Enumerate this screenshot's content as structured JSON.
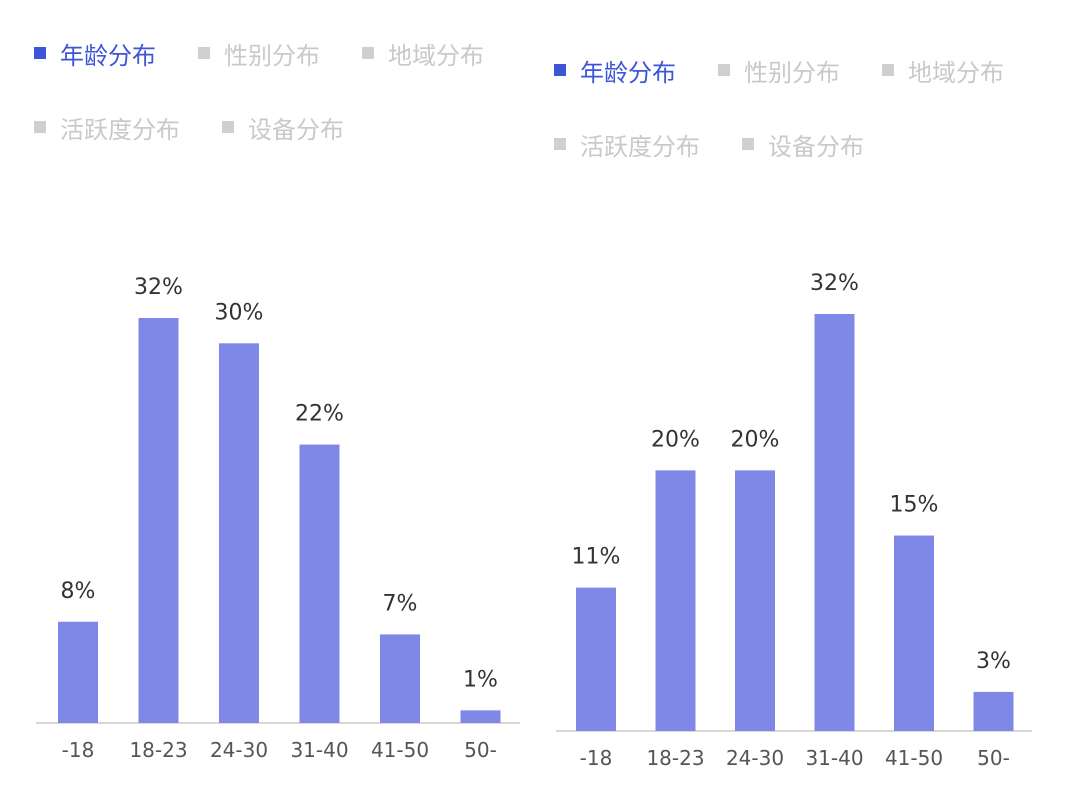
{
  "colors": {
    "bar": "#7f88e6",
    "active_legend": "#3d55d8",
    "inactive_legend": "#c9c9c9"
  },
  "panels": [
    {
      "legend": [
        {
          "label": "年龄分布",
          "active": true
        },
        {
          "label": "性别分布",
          "active": false
        },
        {
          "label": "地域分布",
          "active": false
        },
        {
          "label": "活跃度分布",
          "active": false
        },
        {
          "label": "设备分布",
          "active": false
        }
      ]
    },
    {
      "legend": [
        {
          "label": "年龄分布",
          "active": true
        },
        {
          "label": "性别分布",
          "active": false
        },
        {
          "label": "地域分布",
          "active": false
        },
        {
          "label": "活跃度分布",
          "active": false
        },
        {
          "label": "设备分布",
          "active": false
        }
      ]
    }
  ],
  "chart_data": [
    {
      "type": "bar",
      "categories": [
        "-18",
        "18-23",
        "24-30",
        "31-40",
        "41-50",
        "50-"
      ],
      "values": [
        8,
        32,
        30,
        22,
        7,
        1
      ],
      "value_labels": [
        "8%",
        "32%",
        "30%",
        "22%",
        "7%",
        "1%"
      ],
      "ylim": [
        0,
        32
      ],
      "unit": "%",
      "grid": false,
      "title": "",
      "xlabel": "",
      "ylabel": ""
    },
    {
      "type": "bar",
      "categories": [
        "-18",
        "18-23",
        "24-30",
        "31-40",
        "41-50",
        "50-"
      ],
      "values": [
        11,
        20,
        20,
        32,
        15,
        3
      ],
      "value_labels": [
        "11%",
        "20%",
        "20%",
        "32%",
        "15%",
        "3%"
      ],
      "ylim": [
        0,
        32
      ],
      "unit": "%",
      "grid": false,
      "title": "",
      "xlabel": "",
      "ylabel": ""
    }
  ]
}
